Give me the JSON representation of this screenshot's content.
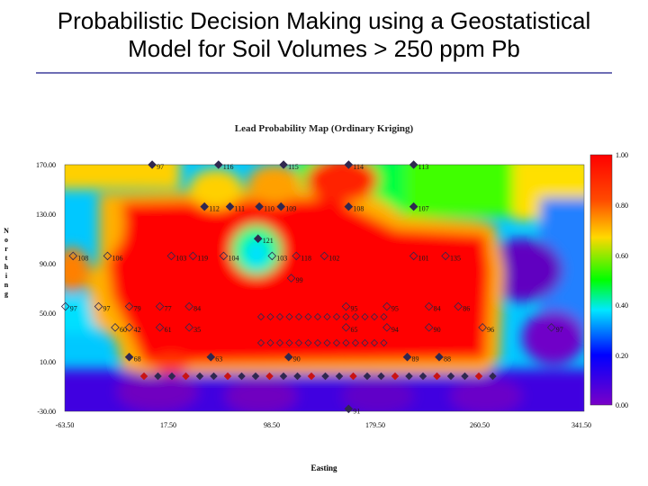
{
  "slide": {
    "title_line1": "Probabilistic Decision Making using a Geostatistical",
    "title_line2": "Model for Soil Volumes > 250 ppm Pb"
  },
  "map": {
    "title": "Lead Probability Map (Ordinary Kriging)",
    "y_axis_label": "Northing",
    "x_axis_label": "Easting",
    "y_ticks": [
      "170.00",
      "130.00",
      "90.00",
      "50.00",
      "10.00",
      "-30.00"
    ],
    "x_ticks": [
      "-63.50",
      "17.50",
      "98.50",
      "179.50",
      "260.50",
      "341.50"
    ],
    "colorbar_ticks": [
      "1.00",
      "0.80",
      "0.60",
      "0.40",
      "0.20",
      "0.00"
    ],
    "colors": {
      "high": "#ff0000",
      "mid": "#00ff00",
      "low": "#6a00c8",
      "marker_red": "#c81414",
      "marker_dark": "#302850"
    },
    "sample_labels": [
      {
        "t": "97",
        "e": 5,
        "n": 170
      },
      {
        "t": "116",
        "e": 57,
        "n": 170
      },
      {
        "t": "115",
        "e": 108,
        "n": 170
      },
      {
        "t": "114",
        "e": 159,
        "n": 170
      },
      {
        "t": "113",
        "e": 210,
        "n": 170
      },
      {
        "t": "112",
        "e": 46,
        "n": 136
      },
      {
        "t": "111",
        "e": 66,
        "n": 136
      },
      {
        "t": "110",
        "e": 89,
        "n": 136
      },
      {
        "t": "109",
        "e": 106,
        "n": 136
      },
      {
        "t": "108",
        "e": 159,
        "n": 136
      },
      {
        "t": "107",
        "e": 210,
        "n": 136
      },
      {
        "t": "121",
        "e": 88,
        "n": 110
      },
      {
        "t": "108",
        "e": -57,
        "n": 96
      },
      {
        "t": "106",
        "e": -30,
        "n": 96
      },
      {
        "t": "103",
        "e": 20,
        "n": 96
      },
      {
        "t": "119",
        "e": 37,
        "n": 96
      },
      {
        "t": "104",
        "e": 61,
        "n": 96
      },
      {
        "t": "103",
        "e": 99,
        "n": 96
      },
      {
        "t": "118",
        "e": 118,
        "n": 96
      },
      {
        "t": "102",
        "e": 140,
        "n": 96
      },
      {
        "t": "101",
        "e": 210,
        "n": 96
      },
      {
        "t": "135",
        "e": 235,
        "n": 96
      },
      {
        "t": "99",
        "e": 114,
        "n": 78
      },
      {
        "t": "97",
        "e": -63,
        "n": 55
      },
      {
        "t": "97",
        "e": -37,
        "n": 55
      },
      {
        "t": "79",
        "e": -13,
        "n": 55
      },
      {
        "t": "77",
        "e": 11,
        "n": 55
      },
      {
        "t": "84",
        "e": 34,
        "n": 55
      },
      {
        "t": "95",
        "e": 157,
        "n": 55
      },
      {
        "t": "95",
        "e": 189,
        "n": 55
      },
      {
        "t": "84",
        "e": 222,
        "n": 55
      },
      {
        "t": "86",
        "e": 245,
        "n": 55
      },
      {
        "t": "60",
        "e": -24,
        "n": 38
      },
      {
        "t": "42",
        "e": -13,
        "n": 38
      },
      {
        "t": "61",
        "e": 11,
        "n": 38
      },
      {
        "t": "35",
        "e": 34,
        "n": 38
      },
      {
        "t": "65",
        "e": 157,
        "n": 38
      },
      {
        "t": "94",
        "e": 189,
        "n": 38
      },
      {
        "t": "90",
        "e": 222,
        "n": 38
      },
      {
        "t": "96",
        "e": 264,
        "n": 38
      },
      {
        "t": "97",
        "e": 318,
        "n": 38
      },
      {
        "t": "68",
        "e": -13,
        "n": 14
      },
      {
        "t": "63",
        "e": 51,
        "n": 14
      },
      {
        "t": "90",
        "e": 112,
        "n": 14
      },
      {
        "t": "89",
        "e": 205,
        "n": 14
      },
      {
        "t": "88",
        "e": 230,
        "n": 14
      },
      {
        "t": "91",
        "e": 159,
        "n": -28
      }
    ]
  }
}
